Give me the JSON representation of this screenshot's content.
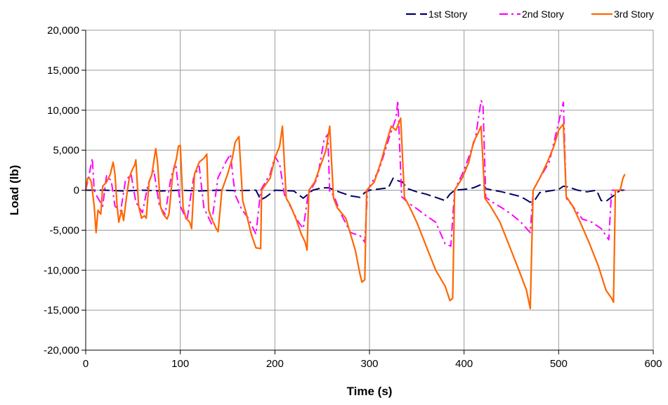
{
  "chart_data": {
    "type": "line",
    "title": "",
    "xlabel": "Time (s)",
    "ylabel": "Load (lb)",
    "xlim": [
      0,
      600
    ],
    "ylim": [
      -20000,
      20000
    ],
    "x_ticks": [
      0,
      100,
      200,
      300,
      400,
      500,
      600
    ],
    "y_ticks": [
      -20000,
      -15000,
      -10000,
      -5000,
      0,
      5000,
      10000,
      15000,
      20000
    ],
    "x_tick_labels": [
      "0",
      "100",
      "200",
      "300",
      "400",
      "500",
      "600"
    ],
    "y_tick_labels": [
      "-20,000",
      "-15,000",
      "-10,000",
      "-5,000",
      "0",
      "5,000",
      "10,000",
      "15,000",
      "20,000"
    ],
    "grid": true,
    "legend_position": "top-right",
    "series": [
      {
        "name": "1st Story",
        "color": "#000066",
        "dash": "long-dash",
        "points": [
          [
            0,
            0
          ],
          [
            20,
            0
          ],
          [
            40,
            -100
          ],
          [
            60,
            0
          ],
          [
            80,
            -100
          ],
          [
            100,
            0
          ],
          [
            120,
            -100
          ],
          [
            140,
            0
          ],
          [
            160,
            -50
          ],
          [
            180,
            0
          ],
          [
            185,
            -1200
          ],
          [
            190,
            -900
          ],
          [
            200,
            0
          ],
          [
            220,
            -100
          ],
          [
            230,
            -1000
          ],
          [
            240,
            0
          ],
          [
            250,
            300
          ],
          [
            257,
            300
          ],
          [
            263,
            0
          ],
          [
            270,
            -300
          ],
          [
            280,
            -700
          ],
          [
            290,
            -900
          ],
          [
            295,
            -300
          ],
          [
            300,
            0
          ],
          [
            320,
            300
          ],
          [
            325,
            1500
          ],
          [
            330,
            1200
          ],
          [
            335,
            1000
          ],
          [
            340,
            200
          ],
          [
            350,
            -200
          ],
          [
            360,
            -500
          ],
          [
            370,
            -900
          ],
          [
            380,
            -1300
          ],
          [
            385,
            -500
          ],
          [
            390,
            0
          ],
          [
            400,
            100
          ],
          [
            410,
            300
          ],
          [
            420,
            800
          ],
          [
            423,
            200
          ],
          [
            430,
            0
          ],
          [
            440,
            -200
          ],
          [
            460,
            -800
          ],
          [
            470,
            -1500
          ],
          [
            475,
            -1200
          ],
          [
            480,
            -300
          ],
          [
            500,
            100
          ],
          [
            505,
            500
          ],
          [
            510,
            400
          ],
          [
            520,
            0
          ],
          [
            530,
            -200
          ],
          [
            540,
            0
          ],
          [
            545,
            -1300
          ],
          [
            550,
            -1400
          ],
          [
            560,
            -500
          ],
          [
            565,
            0
          ],
          [
            570,
            0
          ]
        ]
      },
      {
        "name": "2nd Story",
        "color": "#ff00ff",
        "dash": "dash-dot",
        "points": [
          [
            0,
            0
          ],
          [
            3,
            1500
          ],
          [
            7,
            4000
          ],
          [
            9,
            0
          ],
          [
            12,
            -800
          ],
          [
            18,
            -2000
          ],
          [
            22,
            1800
          ],
          [
            27,
            1200
          ],
          [
            31,
            -2000
          ],
          [
            37,
            -2600
          ],
          [
            42,
            1200
          ],
          [
            48,
            2000
          ],
          [
            53,
            -1500
          ],
          [
            60,
            -2800
          ],
          [
            66,
            800
          ],
          [
            72,
            2500
          ],
          [
            78,
            -2000
          ],
          [
            84,
            -3000
          ],
          [
            90,
            1500
          ],
          [
            95,
            3500
          ],
          [
            100,
            -2000
          ],
          [
            107,
            -3800
          ],
          [
            114,
            1500
          ],
          [
            120,
            3000
          ],
          [
            125,
            -2200
          ],
          [
            133,
            -4200
          ],
          [
            140,
            1600
          ],
          [
            148,
            3500
          ],
          [
            153,
            4500
          ],
          [
            158,
            -600
          ],
          [
            165,
            -2400
          ],
          [
            172,
            -3500
          ],
          [
            180,
            -5500
          ],
          [
            185,
            0
          ],
          [
            195,
            2000
          ],
          [
            200,
            4200
          ],
          [
            205,
            3300
          ],
          [
            210,
            -500
          ],
          [
            215,
            -1700
          ],
          [
            225,
            -4000
          ],
          [
            230,
            -4800
          ],
          [
            235,
            -600
          ],
          [
            245,
            1500
          ],
          [
            252,
            6300
          ],
          [
            256,
            7000
          ],
          [
            258,
            -300
          ],
          [
            262,
            -600
          ],
          [
            270,
            -3000
          ],
          [
            280,
            -5300
          ],
          [
            290,
            -5700
          ],
          [
            295,
            -6500
          ],
          [
            298,
            0
          ],
          [
            310,
            2500
          ],
          [
            322,
            7000
          ],
          [
            328,
            9000
          ],
          [
            330,
            11200
          ],
          [
            334,
            -800
          ],
          [
            340,
            -1500
          ],
          [
            350,
            -2300
          ],
          [
            360,
            -3200
          ],
          [
            370,
            -4000
          ],
          [
            380,
            -6700
          ],
          [
            386,
            -7000
          ],
          [
            390,
            0
          ],
          [
            400,
            2500
          ],
          [
            412,
            6500
          ],
          [
            418,
            11200
          ],
          [
            420,
            10800
          ],
          [
            423,
            -900
          ],
          [
            430,
            -1500
          ],
          [
            440,
            -2200
          ],
          [
            450,
            -3000
          ],
          [
            460,
            -4000
          ],
          [
            470,
            -5300
          ],
          [
            473,
            0
          ],
          [
            480,
            1500
          ],
          [
            490,
            3500
          ],
          [
            497,
            7000
          ],
          [
            504,
            10500
          ],
          [
            505,
            11000
          ],
          [
            508,
            -1000
          ],
          [
            515,
            -2000
          ],
          [
            525,
            -3600
          ],
          [
            535,
            -4000
          ],
          [
            545,
            -4800
          ],
          [
            553,
            -6200
          ],
          [
            556,
            0
          ],
          [
            565,
            0
          ],
          [
            570,
            0
          ]
        ]
      },
      {
        "name": "3rd Story",
        "color": "#ff6600",
        "dash": "solid",
        "points": [
          [
            0,
            0
          ],
          [
            2,
            1500
          ],
          [
            4,
            1500
          ],
          [
            6,
            1000
          ],
          [
            9,
            -2000
          ],
          [
            11,
            -5300
          ],
          [
            13,
            -2500
          ],
          [
            16,
            -3000
          ],
          [
            18,
            500
          ],
          [
            22,
            1000
          ],
          [
            26,
            2000
          ],
          [
            29,
            3500
          ],
          [
            31,
            2000
          ],
          [
            33,
            -1600
          ],
          [
            35,
            -4000
          ],
          [
            38,
            -2500
          ],
          [
            40,
            -3800
          ],
          [
            43,
            -1000
          ],
          [
            46,
            1500
          ],
          [
            49,
            2500
          ],
          [
            52,
            3200
          ],
          [
            53,
            3800
          ],
          [
            56,
            -2000
          ],
          [
            59,
            -3500
          ],
          [
            62,
            -3200
          ],
          [
            64,
            -3500
          ],
          [
            67,
            1000
          ],
          [
            70,
            2000
          ],
          [
            74,
            5200
          ],
          [
            76,
            3500
          ],
          [
            79,
            -2000
          ],
          [
            82,
            -3000
          ],
          [
            86,
            -3600
          ],
          [
            88,
            -3000
          ],
          [
            92,
            2000
          ],
          [
            96,
            4000
          ],
          [
            98,
            5500
          ],
          [
            100,
            5600
          ],
          [
            103,
            -2200
          ],
          [
            106,
            -3500
          ],
          [
            110,
            -4000
          ],
          [
            112,
            -4800
          ],
          [
            115,
            2000
          ],
          [
            120,
            3500
          ],
          [
            125,
            4000
          ],
          [
            128,
            4500
          ],
          [
            130,
            -2500
          ],
          [
            133,
            -3500
          ],
          [
            138,
            -4800
          ],
          [
            140,
            -5200
          ],
          [
            144,
            0
          ],
          [
            150,
            2000
          ],
          [
            155,
            4000
          ],
          [
            158,
            6000
          ],
          [
            162,
            6700
          ],
          [
            166,
            -1300
          ],
          [
            170,
            -3000
          ],
          [
            175,
            -5500
          ],
          [
            180,
            -7200
          ],
          [
            185,
            -7300
          ],
          [
            186,
            0
          ],
          [
            195,
            1500
          ],
          [
            200,
            4000
          ],
          [
            205,
            5500
          ],
          [
            208,
            8000
          ],
          [
            212,
            -1000
          ],
          [
            216,
            -1800
          ],
          [
            222,
            -3500
          ],
          [
            228,
            -5500
          ],
          [
            232,
            -6500
          ],
          [
            234,
            -7500
          ],
          [
            236,
            0
          ],
          [
            242,
            1000
          ],
          [
            248,
            3000
          ],
          [
            254,
            5000
          ],
          [
            258,
            8000
          ],
          [
            262,
            -1000
          ],
          [
            266,
            -2200
          ],
          [
            275,
            -3500
          ],
          [
            285,
            -7500
          ],
          [
            290,
            -10500
          ],
          [
            292,
            -11500
          ],
          [
            295,
            -11200
          ],
          [
            297,
            0
          ],
          [
            305,
            1000
          ],
          [
            312,
            3500
          ],
          [
            318,
            6000
          ],
          [
            323,
            8000
          ],
          [
            328,
            7500
          ],
          [
            333,
            9000
          ],
          [
            337,
            -900
          ],
          [
            342,
            -2000
          ],
          [
            350,
            -4000
          ],
          [
            360,
            -7000
          ],
          [
            370,
            -10000
          ],
          [
            380,
            -12000
          ],
          [
            385,
            -13800
          ],
          [
            388,
            -13500
          ],
          [
            390,
            0
          ],
          [
            398,
            1500
          ],
          [
            405,
            3500
          ],
          [
            410,
            6000
          ],
          [
            415,
            7200
          ],
          [
            418,
            8000
          ],
          [
            422,
            -1000
          ],
          [
            428,
            -2000
          ],
          [
            438,
            -4000
          ],
          [
            448,
            -7000
          ],
          [
            458,
            -10000
          ],
          [
            466,
            -12500
          ],
          [
            470,
            -14800
          ],
          [
            473,
            0
          ],
          [
            480,
            1500
          ],
          [
            488,
            3500
          ],
          [
            495,
            5500
          ],
          [
            500,
            7500
          ],
          [
            505,
            8300
          ],
          [
            508,
            -800
          ],
          [
            515,
            -2000
          ],
          [
            522,
            -3800
          ],
          [
            532,
            -6500
          ],
          [
            542,
            -9500
          ],
          [
            550,
            -12500
          ],
          [
            556,
            -13500
          ],
          [
            558,
            -14000
          ],
          [
            560,
            0
          ],
          [
            565,
            0
          ],
          [
            568,
            1500
          ],
          [
            570,
            2000
          ]
        ]
      }
    ]
  }
}
